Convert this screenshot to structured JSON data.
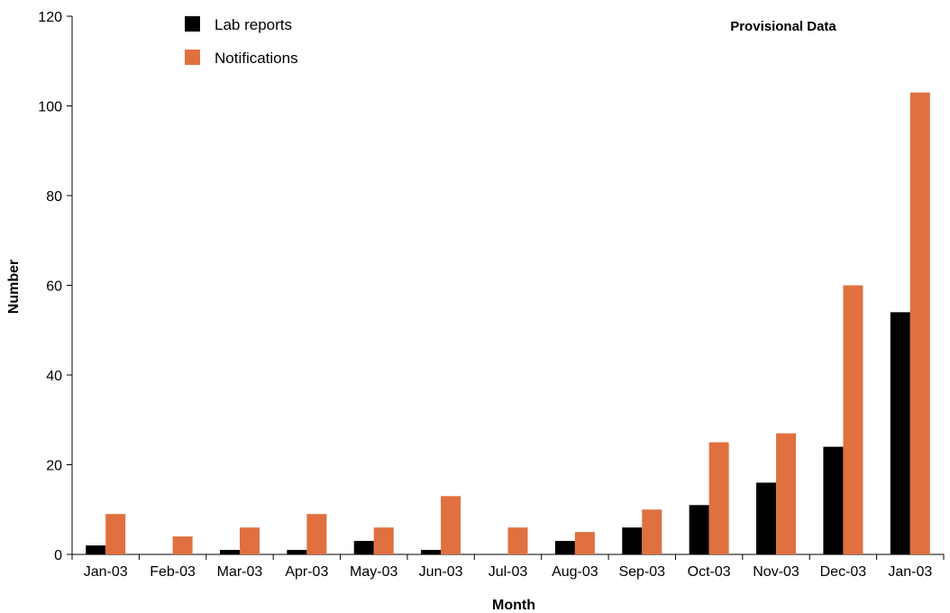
{
  "chart_data": {
    "type": "bar",
    "categories": [
      "Jan-03",
      "Feb-03",
      "Mar-03",
      "Apr-03",
      "May-03",
      "Jun-03",
      "Jul-03",
      "Aug-03",
      "Sep-03",
      "Oct-03",
      "Nov-03",
      "Dec-03",
      "Jan-03"
    ],
    "series": [
      {
        "name": "Lab reports",
        "color": "#000000",
        "values": [
          2,
          0,
          1,
          1,
          3,
          1,
          0,
          3,
          6,
          11,
          16,
          24,
          54
        ]
      },
      {
        "name": "Notifications",
        "color": "#E07040",
        "values": [
          9,
          4,
          6,
          9,
          6,
          13,
          6,
          5,
          10,
          25,
          27,
          60,
          103
        ]
      }
    ],
    "title": "",
    "annotation": "Provisional Data",
    "xlabel": "Month",
    "ylabel": "Number",
    "ylim": [
      0,
      120
    ],
    "yticks": [
      0,
      20,
      40,
      60,
      80,
      100,
      120
    ],
    "grid": false,
    "legend_position": "top-left"
  }
}
